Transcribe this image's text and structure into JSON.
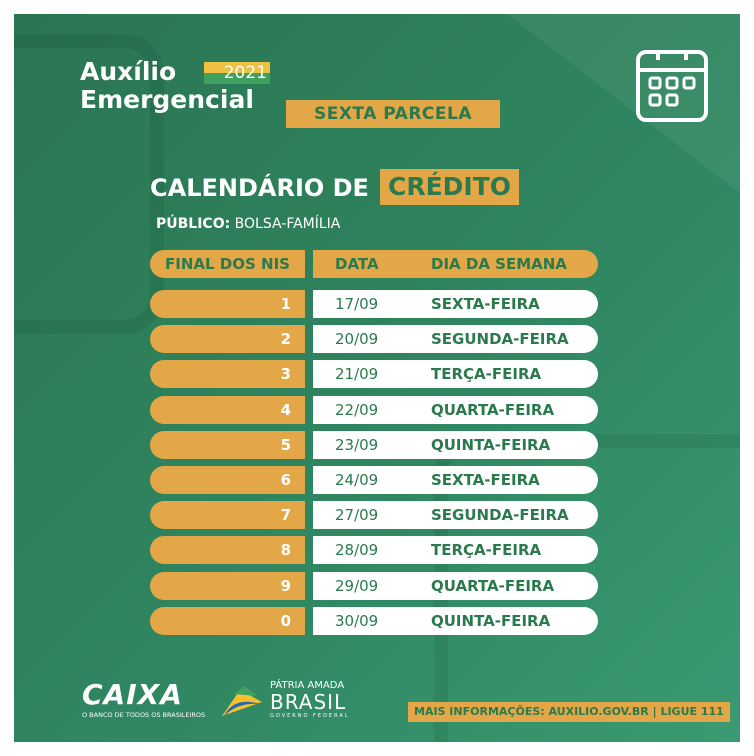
{
  "header": {
    "brand_line1": "Auxílio",
    "brand_line2": "Emergencial",
    "year": "2021",
    "installment": "SEXTA PARCELA"
  },
  "title": {
    "main": "CALENDÁRIO DE",
    "highlight": "CRÉDITO"
  },
  "audience": {
    "label": "PÚBLICO:",
    "value": "BOLSA-FAMÍLIA"
  },
  "table": {
    "columns": [
      "FINAL DOS NIS",
      "DATA",
      "DIA DA SEMANA"
    ],
    "rows": [
      {
        "nis": "1",
        "date": "17/09",
        "weekday": "SEXTA-FEIRA"
      },
      {
        "nis": "2",
        "date": "20/09",
        "weekday": "SEGUNDA-FEIRA"
      },
      {
        "nis": "3",
        "date": "21/09",
        "weekday": "TERÇA-FEIRA"
      },
      {
        "nis": "4",
        "date": "22/09",
        "weekday": "QUARTA-FEIRA"
      },
      {
        "nis": "5",
        "date": "23/09",
        "weekday": "QUINTA-FEIRA"
      },
      {
        "nis": "6",
        "date": "24/09",
        "weekday": "SEXTA-FEIRA"
      },
      {
        "nis": "7",
        "date": "27/09",
        "weekday": "SEGUNDA-FEIRA"
      },
      {
        "nis": "8",
        "date": "28/09",
        "weekday": "TERÇA-FEIRA"
      },
      {
        "nis": "9",
        "date": "29/09",
        "weekday": "QUARTA-FEIRA"
      },
      {
        "nis": "0",
        "date": "30/09",
        "weekday": "QUINTA-FEIRA"
      }
    ]
  },
  "footer": {
    "caixa": "CAIXA",
    "caixa_tagline": "O BANCO DE TODOS OS BRASILEIROS",
    "gov_line1": "PÁTRIA AMADA",
    "gov_line2": "BRASIL",
    "gov_line3": "GOVERNO FEDERAL",
    "info": "MAIS INFORMAÇÕES: AUXILIO.GOV.BR | LIGUE 111"
  },
  "icons": [
    "calendar-icon"
  ],
  "colors": {
    "green": "#2e7d57",
    "gold": "#e3a747",
    "text_green": "#2a7a4d"
  }
}
